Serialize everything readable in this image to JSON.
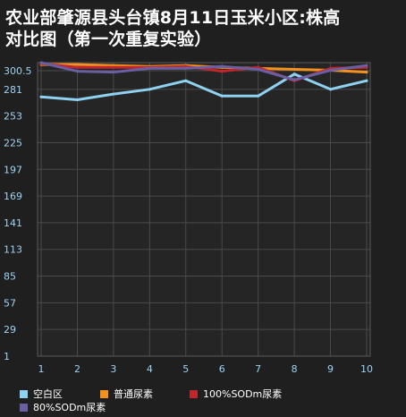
{
  "title_line1": "农业部肇源县头台镇8月11日玉米小区:株高",
  "title_line2": "对比图（第一次重复实验）",
  "chart_data": {
    "type": "line",
    "title": "农业部肇源县头台镇8月11日玉米小区:株高对比图（第一次重复实验）",
    "x": [
      1,
      2,
      3,
      4,
      5,
      6,
      7,
      8,
      9,
      10
    ],
    "x_tick_labels": [
      "1",
      "2",
      "3",
      "4",
      "5",
      "6",
      "7",
      "8",
      "9",
      "10"
    ],
    "y_tick_labels": [
      "1",
      "29",
      "57",
      "85",
      "113",
      "141",
      "169",
      "197",
      "225",
      "253",
      "281",
      "300.5"
    ],
    "y_ticks": [
      1,
      29,
      57,
      85,
      113,
      141,
      169,
      197,
      225,
      253,
      281,
      300.5
    ],
    "ylim": [
      1,
      309
    ],
    "grid": true,
    "legend_position": "bottom",
    "series": [
      {
        "name": "空白区",
        "color": "#8fd1f0",
        "values": [
          273,
          270,
          276,
          281,
          290,
          274,
          274,
          297,
          281,
          290
        ]
      },
      {
        "name": "普通尿素",
        "color": "#f5921e",
        "values": [
          307,
          307,
          306,
          305,
          306,
          304,
          303,
          302,
          301,
          299
        ]
      },
      {
        "name": "100%SODm尿素",
        "color": "#c0262d",
        "values": [
          308,
          304,
          304,
          304,
          305,
          300,
          304,
          290,
          303,
          304
        ]
      },
      {
        "name": "80%SODm尿素",
        "color": "#6a5fa3",
        "values": [
          309,
          300,
          299,
          303,
          303,
          305,
          302,
          291,
          301,
          306
        ]
      }
    ]
  },
  "colors": {
    "background": "#1f1f1f",
    "plot_background": "#252525",
    "grid": "#4a4a4a",
    "axis_text": "#9fd3f0"
  }
}
